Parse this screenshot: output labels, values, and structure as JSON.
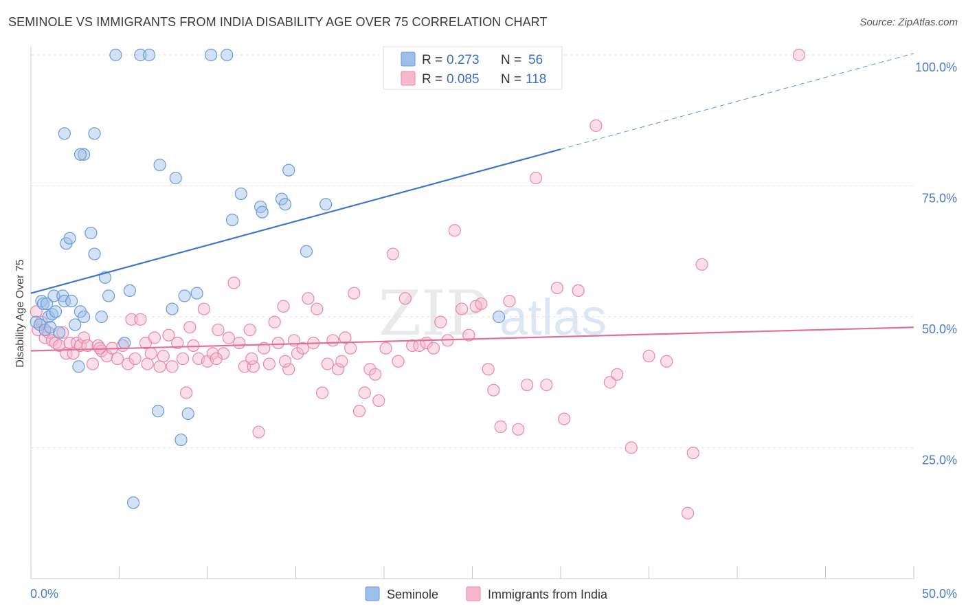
{
  "title": "SEMINOLE VS IMMIGRANTS FROM INDIA DISABILITY AGE OVER 75 CORRELATION CHART",
  "source": "Source: ZipAtlas.com",
  "watermark": {
    "zip": "ZIP",
    "atlas": "atlas"
  },
  "chart_data": {
    "type": "scatter",
    "ylabel": "Disability Age Over 75",
    "xlim": [
      0,
      50
    ],
    "ylim": [
      0,
      105
    ],
    "x_ticks": [
      {
        "value": 0,
        "label": "0.0%"
      },
      {
        "value": 50,
        "label": "50.0%"
      }
    ],
    "y_ticks": [
      {
        "value": 25,
        "label": "25.0%"
      },
      {
        "value": 50,
        "label": "50.0%"
      },
      {
        "value": 75,
        "label": "75.0%"
      },
      {
        "value": 100,
        "label": "100.0%"
      }
    ],
    "grid": true,
    "legend_top": {
      "position": "top-center",
      "entries": [
        {
          "r_label": "R =",
          "r": "0.273",
          "n_label": "N =",
          "n": "56"
        },
        {
          "r_label": "R =",
          "r": "0.085",
          "n_label": "N =",
          "n": "118"
        }
      ]
    },
    "series": [
      {
        "name": "Seminole",
        "color": "#9dbfe9",
        "stroke": "#6a9ad8",
        "trend_color": "#3a78c8",
        "trend": {
          "x0": 0,
          "y0": 54.5,
          "x1": 30,
          "y1": 82,
          "x_dash_end": 50,
          "y_dash_end": 100.3
        },
        "points": [
          [
            0.3,
            49
          ],
          [
            0.5,
            48.5
          ],
          [
            0.6,
            53
          ],
          [
            0.7,
            52.5
          ],
          [
            0.8,
            47.5
          ],
          [
            0.9,
            52.5
          ],
          [
            1.0,
            50
          ],
          [
            1.1,
            48
          ],
          [
            1.2,
            50.5
          ],
          [
            1.3,
            54
          ],
          [
            1.4,
            51
          ],
          [
            1.6,
            47
          ],
          [
            1.8,
            54
          ],
          [
            1.9,
            53
          ],
          [
            2.0,
            64
          ],
          [
            2.2,
            65
          ],
          [
            2.3,
            53
          ],
          [
            2.5,
            48.5
          ],
          [
            2.7,
            40.5
          ],
          [
            2.8,
            51
          ],
          [
            3.0,
            50
          ],
          [
            3.4,
            66
          ],
          [
            3.6,
            62
          ],
          [
            4.0,
            50
          ],
          [
            4.2,
            57.5
          ],
          [
            4.4,
            54
          ],
          [
            4.8,
            100
          ],
          [
            5.3,
            45
          ],
          [
            5.6,
            55
          ],
          [
            5.8,
            14.5
          ],
          [
            6.2,
            100
          ],
          [
            6.7,
            100
          ],
          [
            7.2,
            32
          ],
          [
            7.3,
            79
          ],
          [
            8.0,
            51.5
          ],
          [
            8.2,
            76.5
          ],
          [
            8.5,
            26.5
          ],
          [
            8.7,
            54
          ],
          [
            8.9,
            31.5
          ],
          [
            9.4,
            54.5
          ],
          [
            10.2,
            100
          ],
          [
            11.1,
            100
          ],
          [
            11.4,
            68.5
          ],
          [
            11.9,
            73.5
          ],
          [
            13.0,
            71
          ],
          [
            13.1,
            70
          ],
          [
            14.2,
            72.5
          ],
          [
            14.4,
            71.5
          ],
          [
            14.6,
            78
          ],
          [
            15.6,
            62.5
          ],
          [
            16.7,
            71.5
          ],
          [
            26.5,
            50
          ],
          [
            3.6,
            85
          ],
          [
            3.0,
            81
          ],
          [
            1.9,
            85
          ],
          [
            2.8,
            81
          ]
        ]
      },
      {
        "name": "Immigrants from India",
        "color": "#f7b8cc",
        "stroke": "#e888a6",
        "trend_color": "#e0709a",
        "trend": {
          "x0": 0,
          "y0": 43.5,
          "x1": 50,
          "y1": 48
        },
        "points": [
          [
            0.3,
            51
          ],
          [
            0.4,
            47.5
          ],
          [
            0.6,
            49
          ],
          [
            0.8,
            46
          ],
          [
            1.0,
            47
          ],
          [
            1.2,
            45.5
          ],
          [
            1.4,
            45
          ],
          [
            1.6,
            44.5
          ],
          [
            1.8,
            47
          ],
          [
            2.0,
            43
          ],
          [
            2.2,
            45
          ],
          [
            2.4,
            43
          ],
          [
            2.6,
            45
          ],
          [
            2.8,
            44.5
          ],
          [
            3.0,
            46
          ],
          [
            3.2,
            44.5
          ],
          [
            3.5,
            41
          ],
          [
            3.8,
            44.5
          ],
          [
            4.0,
            43.5
          ],
          [
            4.3,
            42.5
          ],
          [
            4.6,
            44
          ],
          [
            4.9,
            42
          ],
          [
            5.2,
            44.5
          ],
          [
            5.5,
            41
          ],
          [
            5.7,
            49.5
          ],
          [
            5.9,
            42
          ],
          [
            6.2,
            49.5
          ],
          [
            6.5,
            45
          ],
          [
            6.8,
            43
          ],
          [
            7.0,
            46
          ],
          [
            7.3,
            40.5
          ],
          [
            7.5,
            42.5
          ],
          [
            7.8,
            46.5
          ],
          [
            8.0,
            40.5
          ],
          [
            8.3,
            45
          ],
          [
            8.6,
            42
          ],
          [
            8.8,
            35.5
          ],
          [
            9.0,
            48
          ],
          [
            9.2,
            44.5
          ],
          [
            9.5,
            42
          ],
          [
            9.8,
            51.5
          ],
          [
            10.0,
            41.5
          ],
          [
            10.3,
            43
          ],
          [
            10.6,
            47.5
          ],
          [
            10.9,
            43
          ],
          [
            11.2,
            46
          ],
          [
            11.5,
            56.5
          ],
          [
            11.8,
            45
          ],
          [
            12.1,
            40.5
          ],
          [
            12.4,
            47.5
          ],
          [
            12.6,
            40.5
          ],
          [
            12.9,
            28
          ],
          [
            13.2,
            44
          ],
          [
            13.5,
            41
          ],
          [
            13.8,
            49
          ],
          [
            14.0,
            45
          ],
          [
            14.3,
            52
          ],
          [
            14.6,
            40
          ],
          [
            14.9,
            45.5
          ],
          [
            15.1,
            43
          ],
          [
            15.4,
            44
          ],
          [
            15.7,
            53.5
          ],
          [
            16.0,
            45
          ],
          [
            16.2,
            51.5
          ],
          [
            16.5,
            35.5
          ],
          [
            16.8,
            41
          ],
          [
            17.1,
            45.5
          ],
          [
            17.4,
            40
          ],
          [
            17.6,
            41.5
          ],
          [
            17.8,
            46
          ],
          [
            18.1,
            44
          ],
          [
            18.3,
            54.5
          ],
          [
            18.6,
            32
          ],
          [
            18.9,
            35.5
          ],
          [
            19.2,
            40
          ],
          [
            19.5,
            39
          ],
          [
            19.7,
            34
          ],
          [
            20.1,
            44
          ],
          [
            20.5,
            62
          ],
          [
            20.8,
            41.5
          ],
          [
            21.2,
            53.5
          ],
          [
            21.6,
            44.5
          ],
          [
            22.0,
            44.5
          ],
          [
            22.4,
            45
          ],
          [
            22.8,
            44
          ],
          [
            23.2,
            49
          ],
          [
            23.6,
            45.5
          ],
          [
            24.0,
            66.5
          ],
          [
            24.4,
            51.5
          ],
          [
            24.8,
            46.5
          ],
          [
            25.2,
            52
          ],
          [
            25.5,
            52.5
          ],
          [
            25.9,
            40
          ],
          [
            26.2,
            36
          ],
          [
            26.6,
            29
          ],
          [
            27.1,
            53
          ],
          [
            27.6,
            28.5
          ],
          [
            28.1,
            37
          ],
          [
            28.6,
            76.5
          ],
          [
            29.2,
            37
          ],
          [
            29.8,
            55.5
          ],
          [
            30.2,
            30.5
          ],
          [
            31.0,
            55
          ],
          [
            32.0,
            86.5
          ],
          [
            32.8,
            37.5
          ],
          [
            33.2,
            39
          ],
          [
            34.0,
            25
          ],
          [
            35.0,
            42.5
          ],
          [
            36.0,
            41.5
          ],
          [
            37.2,
            12.5
          ],
          [
            37.5,
            24
          ],
          [
            38.0,
            60
          ],
          [
            43.5,
            100
          ],
          [
            14.4,
            41.5
          ],
          [
            10.5,
            42
          ],
          [
            12.5,
            42
          ],
          [
            6.6,
            41
          ],
          [
            3.9,
            44
          ]
        ]
      }
    ]
  },
  "legend_bottom": [
    {
      "label": "Seminole",
      "color": "#9dbfe9",
      "stroke": "#6a9ad8"
    },
    {
      "label": "Immigrants from India",
      "color": "#f7b8cc",
      "stroke": "#e888a6"
    }
  ]
}
